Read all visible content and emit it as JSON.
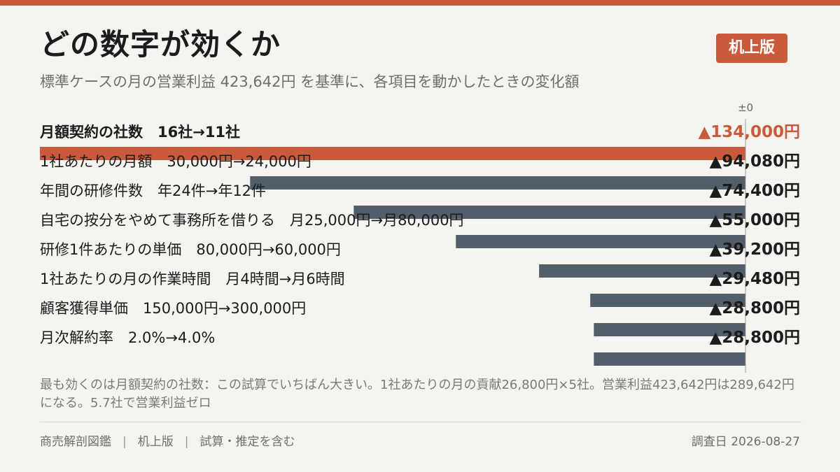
{
  "header": {
    "title": "どの数字が効くか",
    "badge": "机上版",
    "subtitle": "標準ケースの月の営業利益 423,642円 を基準に、各項目を動かしたときの変化額"
  },
  "colors": {
    "accent": "#c95a3c",
    "bar": "#525f6b",
    "background": "#f5f4f0"
  },
  "chart_data": {
    "type": "bar",
    "orientation": "horizontal",
    "baseline_label": "±0",
    "base_value": 423642,
    "unit": "円",
    "categories": [
      "月額契約の社数　16社→11社",
      "1社あたりの月額　30,000円→24,000円",
      "年間の研修件数　年24件→年12件",
      "自宅の按分をやめて事務所を借りる　月25,000円→月80,000円",
      "研修1件あたりの単価　80,000円→60,000円",
      "1社あたりの月の作業時間　月4時間→月6時間",
      "顧客獲得単価　150,000円→300,000円",
      "月次解約率　2.0%→4.0%"
    ],
    "values": [
      -134000,
      -94080,
      -74400,
      -55000,
      -39200,
      -29480,
      -28800,
      -28800
    ],
    "value_labels": [
      "▲134,000円",
      "▲94,080円",
      "▲74,400円",
      "▲55,000円",
      "▲39,200円",
      "▲29,480円",
      "▲28,800円",
      "▲28,800円"
    ],
    "highlight_index": 0,
    "xlim": [
      -134000,
      0
    ]
  },
  "note": "最も効くのは月額契約の社数：この試算でいちばん大きい。1社あたりの月の貢献26,800円×5社。営業利益423,642円は289,642円になる。5.7社で営業利益ゼロ",
  "footer": {
    "source": "商売解剖図鑑",
    "edition": "机上版",
    "caveat": "試算・推定を含む",
    "date": "調査日 2026-08-27"
  }
}
